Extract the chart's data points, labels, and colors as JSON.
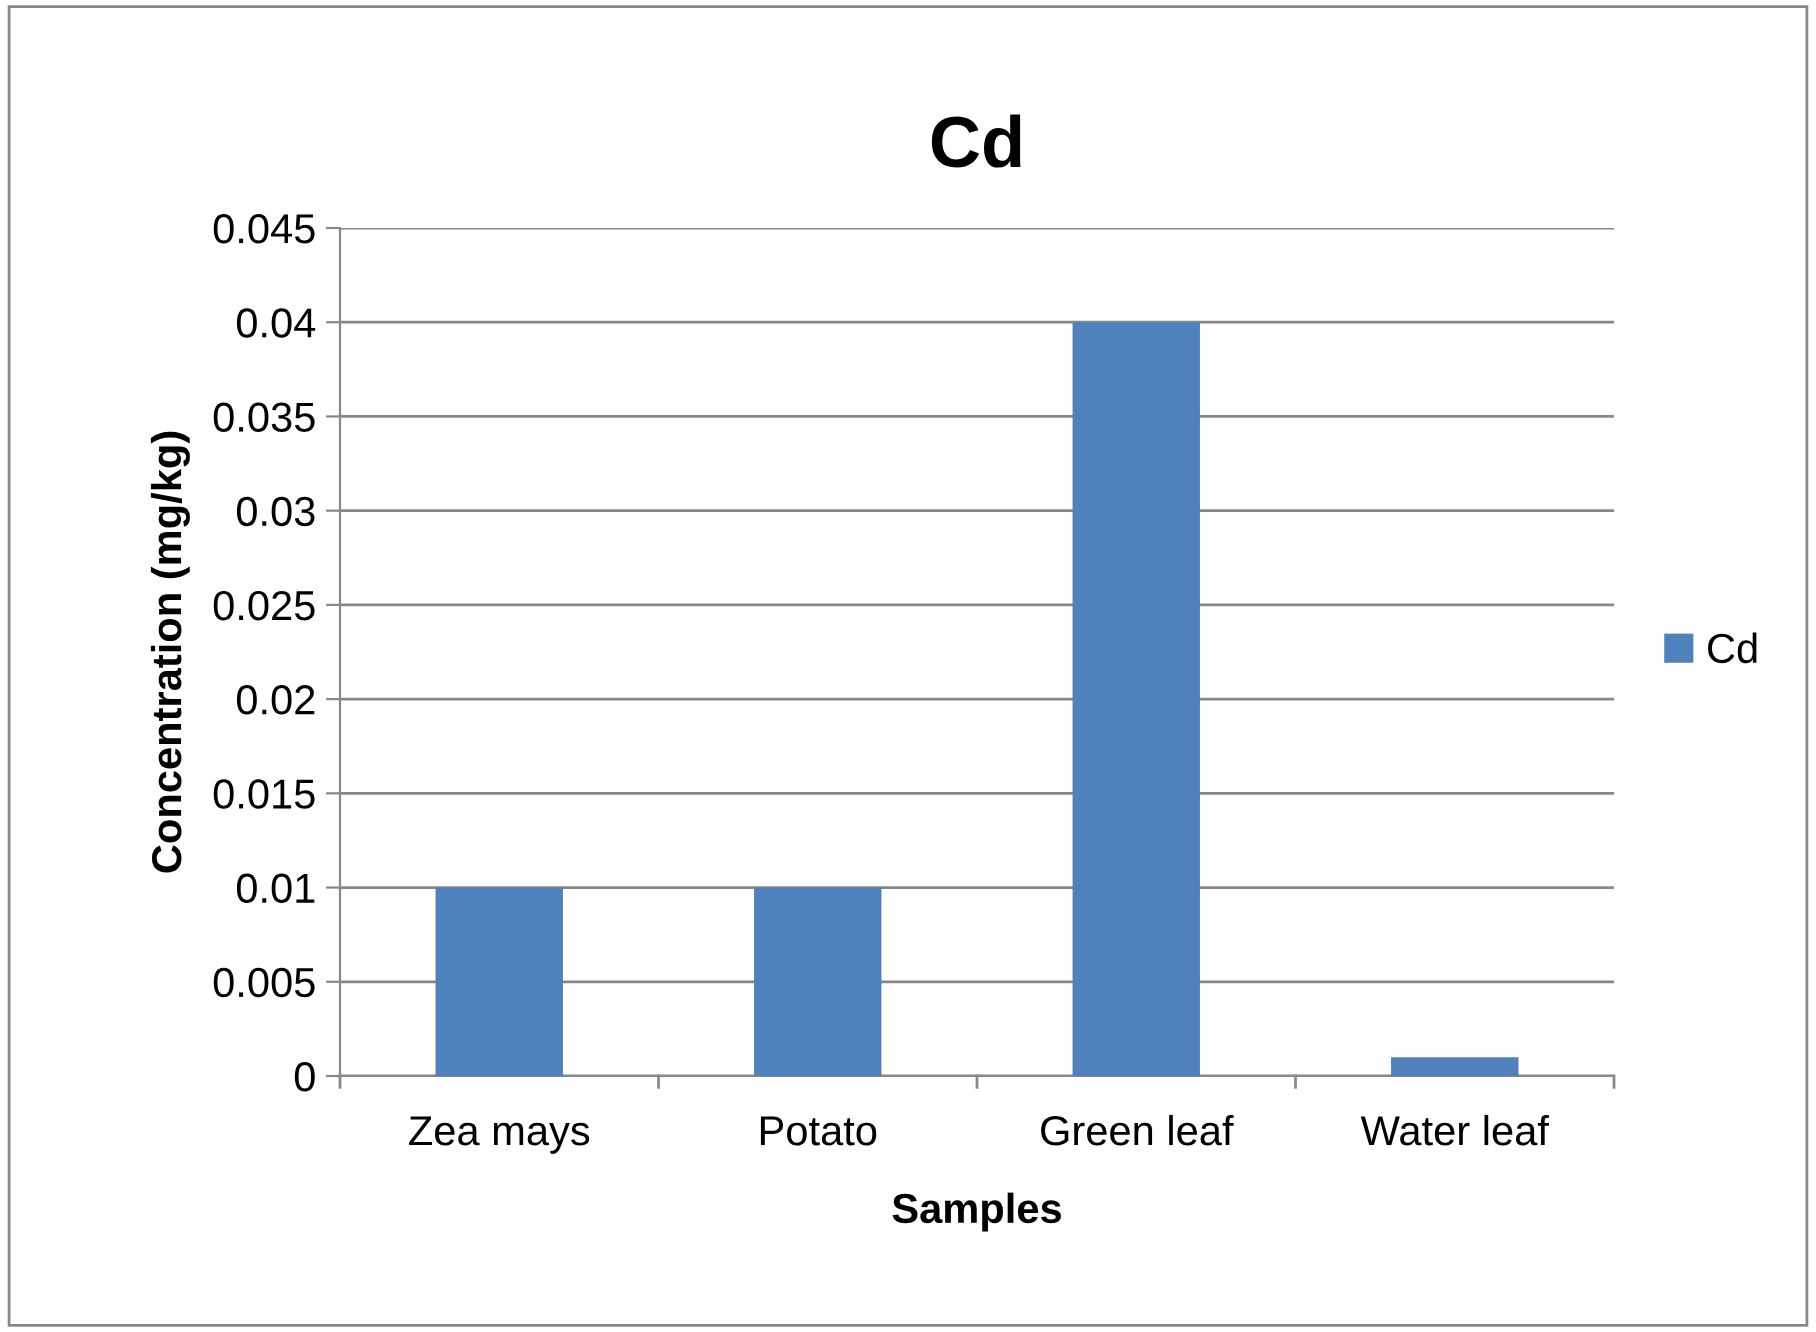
{
  "chart_data": {
    "type": "bar",
    "title": "Cd",
    "xlabel": "Samples",
    "ylabel": "Concentration (mg/kg)",
    "categories": [
      "Zea mays",
      "Potato",
      "Green leaf",
      "Water leaf"
    ],
    "series": [
      {
        "name": "Cd",
        "color": "#4f81bd",
        "values": [
          0.01,
          0.01,
          0.04,
          0.001
        ]
      }
    ],
    "ylim": [
      0,
      0.045
    ],
    "yticks": [
      0,
      0.005,
      0.01,
      0.015,
      0.02,
      0.025,
      0.03,
      0.035,
      0.04,
      0.045
    ],
    "grid": "y",
    "legend": "right"
  }
}
